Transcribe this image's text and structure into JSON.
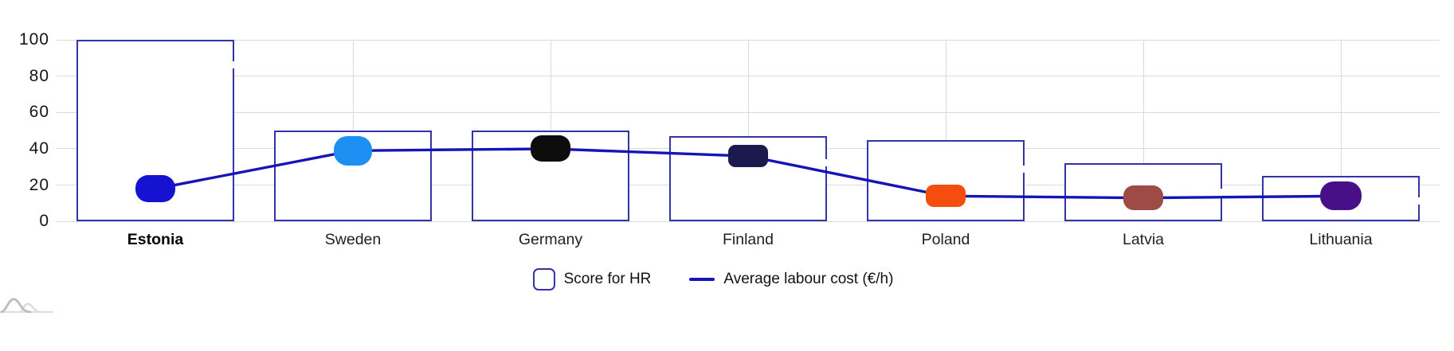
{
  "chart_data": {
    "type": "bar",
    "title": "",
    "categories": [
      "Estonia",
      "Sweden",
      "Germany",
      "Finland",
      "Poland",
      "Latvia",
      "Lithuania"
    ],
    "series": [
      {
        "name": "Score for HR",
        "type": "bar",
        "values": [
          100,
          50,
          50,
          47,
          45,
          32,
          25
        ]
      },
      {
        "name": "Average labour cost (€/h)",
        "type": "line",
        "values": [
          18,
          39,
          40,
          36,
          14,
          13,
          14
        ]
      }
    ],
    "xlabel": "",
    "ylabel": "",
    "ylim": [
      0,
      100
    ],
    "yticks": [
      0,
      20,
      40,
      60,
      80,
      100
    ],
    "grid": true,
    "legend_position": "bottom",
    "highlighted_category": "Estonia",
    "marker_colors": [
      "#1512d2",
      "#1e8ff2",
      "#0d0d0d",
      "#1a1a4f",
      "#f54d0d",
      "#9d4b44",
      "#471086"
    ]
  },
  "legend": {
    "items": [
      {
        "label": "Score for HR",
        "swatch": "outlined-square"
      },
      {
        "label": "Average labour cost (€/h)",
        "swatch": "line"
      }
    ]
  },
  "colors": {
    "bar_stroke": "#3434a6",
    "bar_fill": "#ffffff",
    "line": "#1414b8",
    "grid": "#dadada",
    "axis_text": "#141414",
    "category_text": "#1f1f1f",
    "watermark_dark": "#bdbdbd",
    "watermark_light": "#dcdcdc"
  }
}
